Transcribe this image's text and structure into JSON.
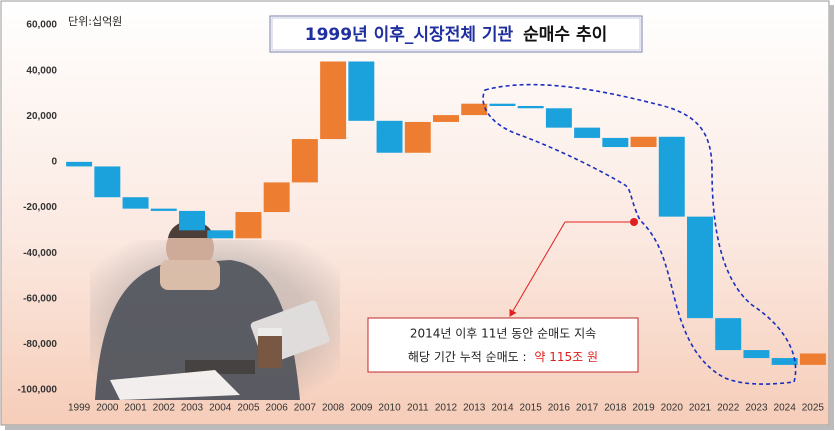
{
  "chart_data": {
    "type": "waterfall",
    "title_highlight": "1999년 이후_시장전체 기관",
    "title_rest": "순매수 추이",
    "unit_label": "단위:십억원",
    "categories": [
      "1999",
      "2000",
      "2001",
      "2002",
      "2003",
      "2004",
      "2005",
      "2006",
      "2007",
      "2008",
      "2009",
      "2010",
      "2011",
      "2012",
      "2013",
      "2014",
      "2015",
      "2016",
      "2017",
      "2018",
      "2019",
      "2020",
      "2021",
      "2022",
      "2023",
      "2024",
      "2025"
    ],
    "values": [
      -2000,
      -13500,
      -5000,
      -1000,
      -8500,
      -3500,
      11500,
      13000,
      19000,
      34000,
      -26000,
      -14000,
      13500,
      3000,
      5000,
      -1000,
      -1000,
      -8500,
      -4500,
      -4000,
      4500,
      -35000,
      -44500,
      -14000,
      -3500,
      -3000,
      5000
    ],
    "increase_color": "#ed7d31",
    "decrease_color": "#1ba1dc",
    "ylim": [
      -100000,
      60000
    ],
    "yticks": [
      {
        "value": -100000,
        "label": "-100,000"
      },
      {
        "value": -80000,
        "label": "-80,000"
      },
      {
        "value": -60000,
        "label": "-60,000"
      },
      {
        "value": -40000,
        "label": "-40,000"
      },
      {
        "value": -20000,
        "label": "-20,000"
      },
      0,
      {
        "value": 20000,
        "label": "20,000"
      },
      {
        "value": 40000,
        "label": "40,000"
      },
      {
        "value": 60000,
        "label": "60,000"
      }
    ],
    "annotation_line1": "2014년 이후 11년 동안 순매도 지속",
    "annotation_line2": "해당 기간 누적 순매도 :",
    "annotation_highlight": "약 115조 원"
  }
}
